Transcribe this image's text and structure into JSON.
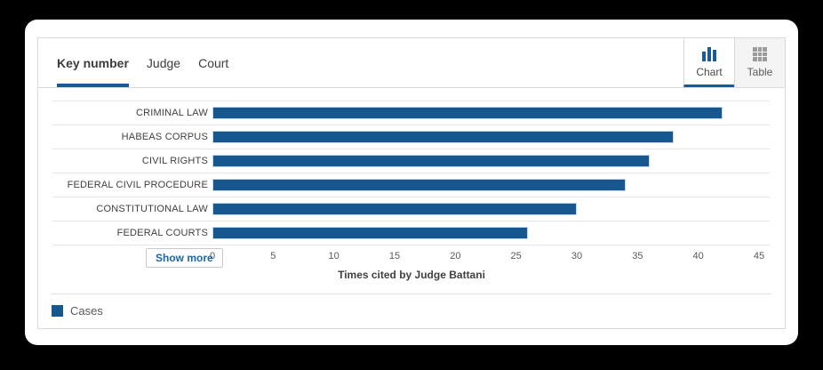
{
  "header": {
    "tabs": [
      {
        "label": "Key number",
        "active": true
      },
      {
        "label": "Judge",
        "active": false
      },
      {
        "label": "Court",
        "active": false
      }
    ],
    "views": [
      {
        "label": "Chart",
        "active": true
      },
      {
        "label": "Table",
        "active": false
      }
    ]
  },
  "show_more_label": "Show more",
  "chart_data": {
    "type": "bar",
    "orientation": "horizontal",
    "categories": [
      "CRIMINAL LAW",
      "HABEAS CORPUS",
      "CIVIL RIGHTS",
      "FEDERAL CIVIL PROCEDURE",
      "CONSTITUTIONAL LAW",
      "FEDERAL COURTS"
    ],
    "series": [
      {
        "name": "Cases",
        "values": [
          42,
          38,
          36,
          34,
          30,
          26
        ]
      }
    ],
    "xlabel": "Times cited by Judge Battani",
    "xlim": [
      0,
      45
    ],
    "xticks": [
      0,
      5,
      10,
      15,
      20,
      25,
      30,
      35,
      40,
      45
    ],
    "grid": "horizontal-row-separators",
    "legend_position": "bottom-left",
    "bar_color": "#16578f"
  },
  "colors": {
    "background": "#000000",
    "card": "#ffffff",
    "panel_border": "#d9d9d9",
    "gridline": "#e5e5e5",
    "accent_blue": "#1a5a96",
    "bar_fill": "#16578f",
    "show_more_text": "#1d66a5",
    "tick_text": "#595959",
    "table_button_bg": "#f4f4f4"
  }
}
